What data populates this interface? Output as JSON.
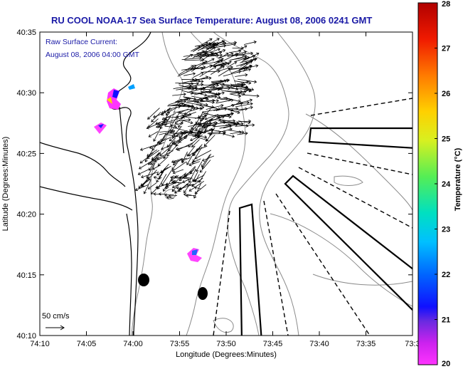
{
  "title": "RU COOL  NOAA-17  Sea Surface Temperature:  August 08, 2006 0241 GMT",
  "annotation": {
    "line1": "Raw Surface Current:",
    "line2": "August 08, 2006 04:00 GMT"
  },
  "scale_label": "50 cm/s",
  "axes": {
    "xlabel": "Longitude (Degrees:Minutes)",
    "ylabel": "Latitude (Degrees:Minutes)",
    "x_ticks": [
      "74:10",
      "74:05",
      "74:00",
      "73:55",
      "73:50",
      "73:45",
      "73:40",
      "73:35",
      "73:3"
    ],
    "y_ticks": [
      "40:35",
      "40:30",
      "40:25",
      "40:20",
      "40:15",
      "40:10"
    ]
  },
  "colorbar": {
    "label": "Temperature (°C)",
    "ticks": [
      "28",
      "27",
      "26",
      "25",
      "24",
      "23",
      "22",
      "21",
      "20"
    ],
    "range": [
      20,
      28
    ]
  },
  "colors": {
    "title": "#1a1aa6",
    "coast": "#000000",
    "bathymetry": "#808080"
  }
}
